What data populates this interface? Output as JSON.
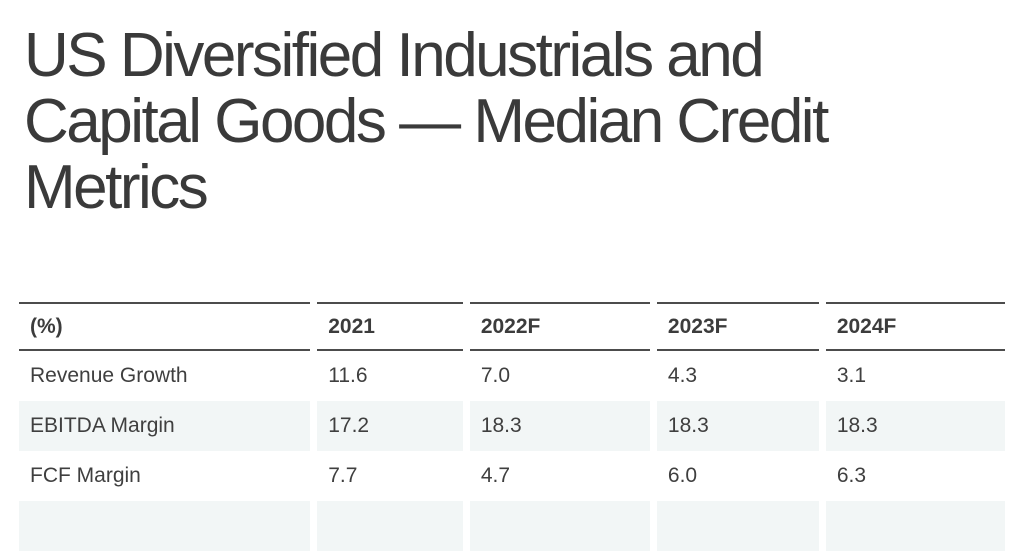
{
  "header": {
    "title_lines": [
      "US Diversified Industrials and",
      "Capital Goods — Median Credit",
      "Metrics"
    ]
  },
  "chart_data": {
    "type": "table",
    "title": "US Diversified Industrials and Capital Goods — Median Credit Metrics",
    "columns": [
      "(%)",
      "2021",
      "2022F",
      "2023F",
      "2024F"
    ],
    "rows": [
      [
        "Revenue Growth",
        "11.6",
        "7.0",
        "4.3",
        "3.1"
      ],
      [
        "EBITDA Margin",
        "17.2",
        "18.3",
        "18.3",
        "18.3"
      ],
      [
        "FCF Margin",
        "7.7",
        "4.7",
        "6.0",
        "6.3"
      ]
    ],
    "layout": {
      "row_striping": "even rows shaded",
      "header_rules": "2px dark gray above and below header, segmented per column",
      "units": "percent"
    }
  },
  "colors": {
    "background": "#ffffff",
    "title_text": "#3a3a3a",
    "table_text": "#3f3f3f",
    "table_border": "#4c4c4c",
    "row_stripe": "#f2f6f6"
  }
}
